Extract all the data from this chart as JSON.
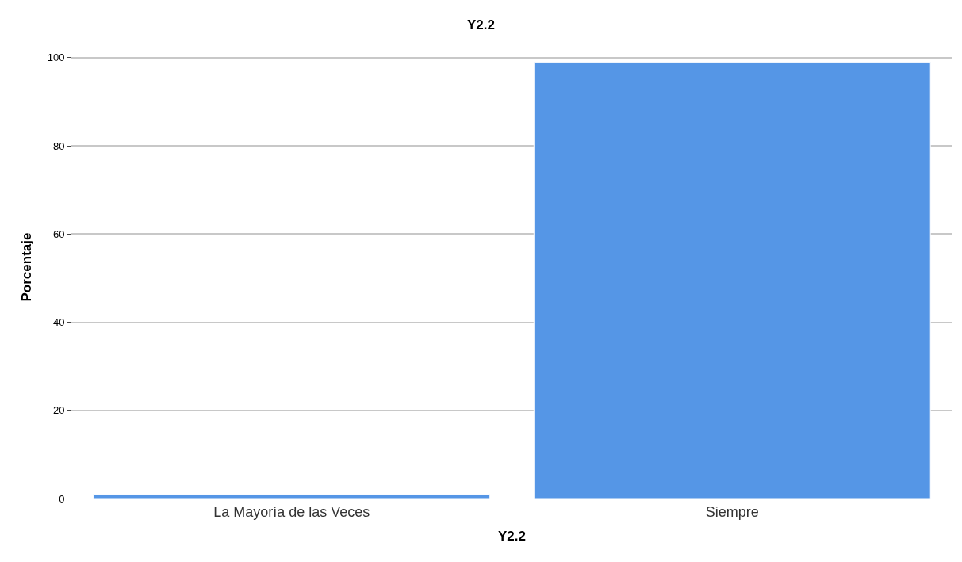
{
  "chart_data": {
    "type": "bar",
    "title": "Y2.2",
    "xlabel": "Y2.2",
    "ylabel": "Porcentaje",
    "categories": [
      "La Mayoría de las Veces",
      "Siempre"
    ],
    "values": [
      1,
      99
    ],
    "color": "#5596e6",
    "ylim": [
      0,
      105
    ],
    "yticks": [
      0,
      20,
      40,
      60,
      80,
      100
    ],
    "grid": "y"
  }
}
